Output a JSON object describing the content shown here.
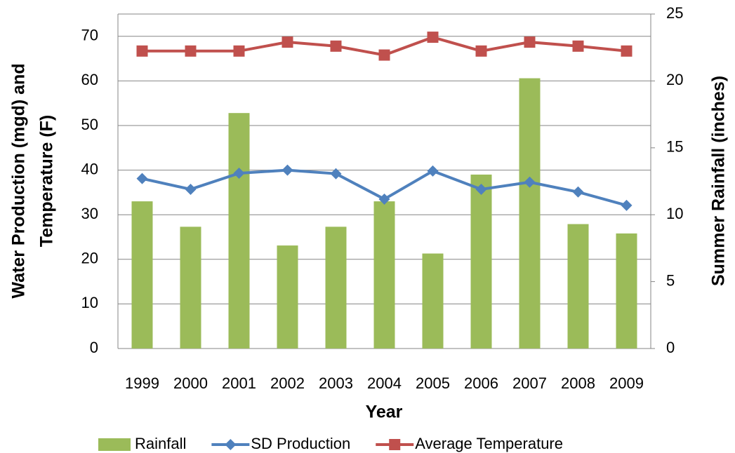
{
  "chart_data": {
    "type": "bar-line",
    "x_label": "Year",
    "y_label": [
      "Water Production (mgd) and",
      "Temperature (F)"
    ],
    "y2_label": "Summer Rainfall (inches)",
    "categories": [
      "1999",
      "2000",
      "2001",
      "2002",
      "2003",
      "2004",
      "2005",
      "2006",
      "2007",
      "2008",
      "2009"
    ],
    "series": [
      {
        "name": "Rainfall",
        "type": "bar",
        "axis": "y2",
        "color": "#9bbb59",
        "values": [
          11.0,
          9.1,
          17.6,
          7.7,
          9.1,
          11.0,
          7.1,
          13.0,
          20.2,
          9.3,
          8.6
        ]
      },
      {
        "name": "SD Production",
        "type": "line",
        "marker": "diamond",
        "color": "#4f81bd",
        "values": [
          38.1,
          35.7,
          39.3,
          40.0,
          39.2,
          33.5,
          39.8,
          35.7,
          37.3,
          35.1,
          32.1
        ]
      },
      {
        "name": "Average Temperature",
        "type": "line",
        "marker": "square",
        "color": "#c0504d",
        "values": [
          66.7,
          66.7,
          66.7,
          68.7,
          67.8,
          65.8,
          69.8,
          66.7,
          68.7,
          67.8,
          66.7
        ]
      }
    ],
    "ylim": [
      0,
      75
    ],
    "yticks": [
      0,
      10,
      20,
      30,
      40,
      50,
      60,
      70
    ],
    "y2lim": [
      0,
      25
    ],
    "y2ticks": [
      0,
      5,
      10,
      15,
      20,
      25
    ],
    "grid": true,
    "legend": "bottom"
  }
}
